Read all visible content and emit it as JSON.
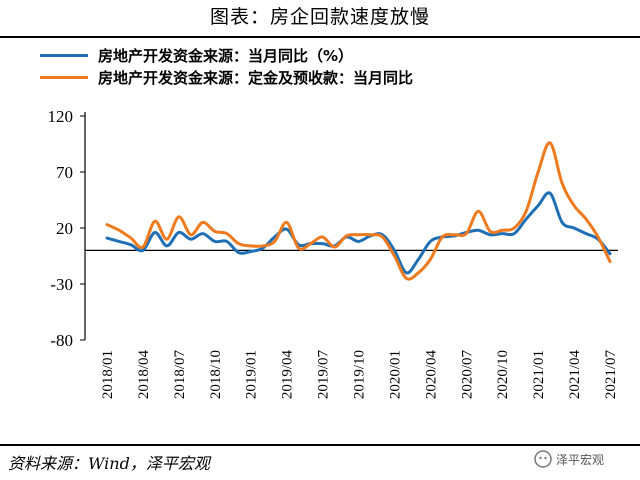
{
  "title": "图表：房企回款速度放慢",
  "source": "资料来源：Wind，泽平宏观",
  "watermark": "泽平宏观",
  "colors": {
    "series1": "#1F6FB4",
    "series2": "#EE7A1D"
  },
  "chart_data": {
    "type": "line",
    "grid": false,
    "legend_position": "top",
    "ylim": [
      -80,
      120
    ],
    "yticks": [
      120,
      70,
      20,
      -30,
      -80
    ],
    "x": [
      "2018/01",
      "2018/02",
      "2018/03",
      "2018/04",
      "2018/05",
      "2018/06",
      "2018/07",
      "2018/08",
      "2018/09",
      "2018/10",
      "2018/11",
      "2018/12",
      "2019/01",
      "2019/02",
      "2019/03",
      "2019/04",
      "2019/05",
      "2019/06",
      "2019/07",
      "2019/08",
      "2019/09",
      "2019/10",
      "2019/11",
      "2019/12",
      "2020/01",
      "2020/02",
      "2020/03",
      "2020/04",
      "2020/05",
      "2020/06",
      "2020/07",
      "2020/08",
      "2020/09",
      "2020/10",
      "2020/11",
      "2020/12",
      "2021/01",
      "2021/02",
      "2021/03",
      "2021/04",
      "2021/05",
      "2021/06",
      "2021/07"
    ],
    "xtick_labels": [
      "2018/01",
      "2018/04",
      "2018/07",
      "2018/10",
      "2019/01",
      "2019/04",
      "2019/07",
      "2019/10",
      "2020/01",
      "2020/04",
      "2020/07",
      "2020/10",
      "2021/01",
      "2021/04",
      "2021/07"
    ],
    "series": [
      {
        "name": "房地产开发资金来源：当月同比（%）",
        "values": [
          11,
          8,
          5,
          0,
          16,
          4,
          16,
          10,
          15,
          8,
          8,
          -2,
          -1,
          2,
          12,
          19,
          5,
          6,
          6,
          4,
          12,
          8,
          13,
          14,
          0,
          -20,
          -8,
          8,
          12,
          13,
          16,
          18,
          14,
          15,
          15,
          28,
          40,
          51,
          25,
          20,
          15,
          10,
          -3
        ]
      },
      {
        "name": "房地产开发资金来源：定金及预收款：当月同比",
        "values": [
          23,
          18,
          11,
          3,
          26,
          10,
          30,
          14,
          25,
          17,
          15,
          6,
          4,
          4,
          8,
          25,
          2,
          6,
          12,
          3,
          13,
          14,
          14,
          12,
          -5,
          -25,
          -20,
          -8,
          12,
          14,
          15,
          35,
          17,
          18,
          20,
          35,
          70,
          96,
          60,
          40,
          28,
          12,
          -10
        ]
      }
    ]
  }
}
